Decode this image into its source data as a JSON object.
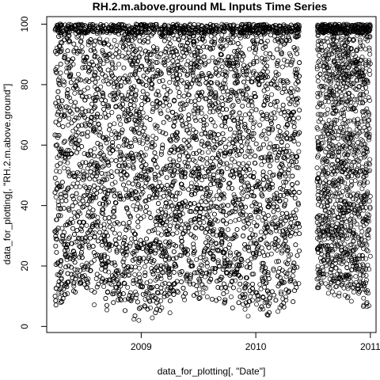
{
  "chart_data": {
    "type": "scatter",
    "title": "RH.2.m.above.ground ML Inputs Time Series",
    "xlabel": "data_for_plotting[, \"Date\"]",
    "ylabel": "data_for_plotting[, \"RH.2.m.above.ground\"]",
    "xlim": [
      "2008-03-06",
      "2011-01-19"
    ],
    "ylim": [
      -2,
      102.5
    ],
    "x_ticks": [
      {
        "value": "2009-01-01",
        "label": "2009"
      },
      {
        "value": "2010-01-01",
        "label": "2010"
      },
      {
        "value": "2011-01-01",
        "label": "2011"
      }
    ],
    "y_ticks": [
      0,
      20,
      40,
      60,
      80,
      100
    ],
    "grid": false,
    "marker": "open-circle",
    "series": [
      {
        "x_range": [
          "2008-04-01",
          "2010-05-20"
        ],
        "y_range": [
          1,
          100
        ]
      },
      {
        "x_range": [
          "2010-07-15",
          "2011-01-01"
        ],
        "y_range": [
          4,
          100
        ]
      }
    ]
  }
}
